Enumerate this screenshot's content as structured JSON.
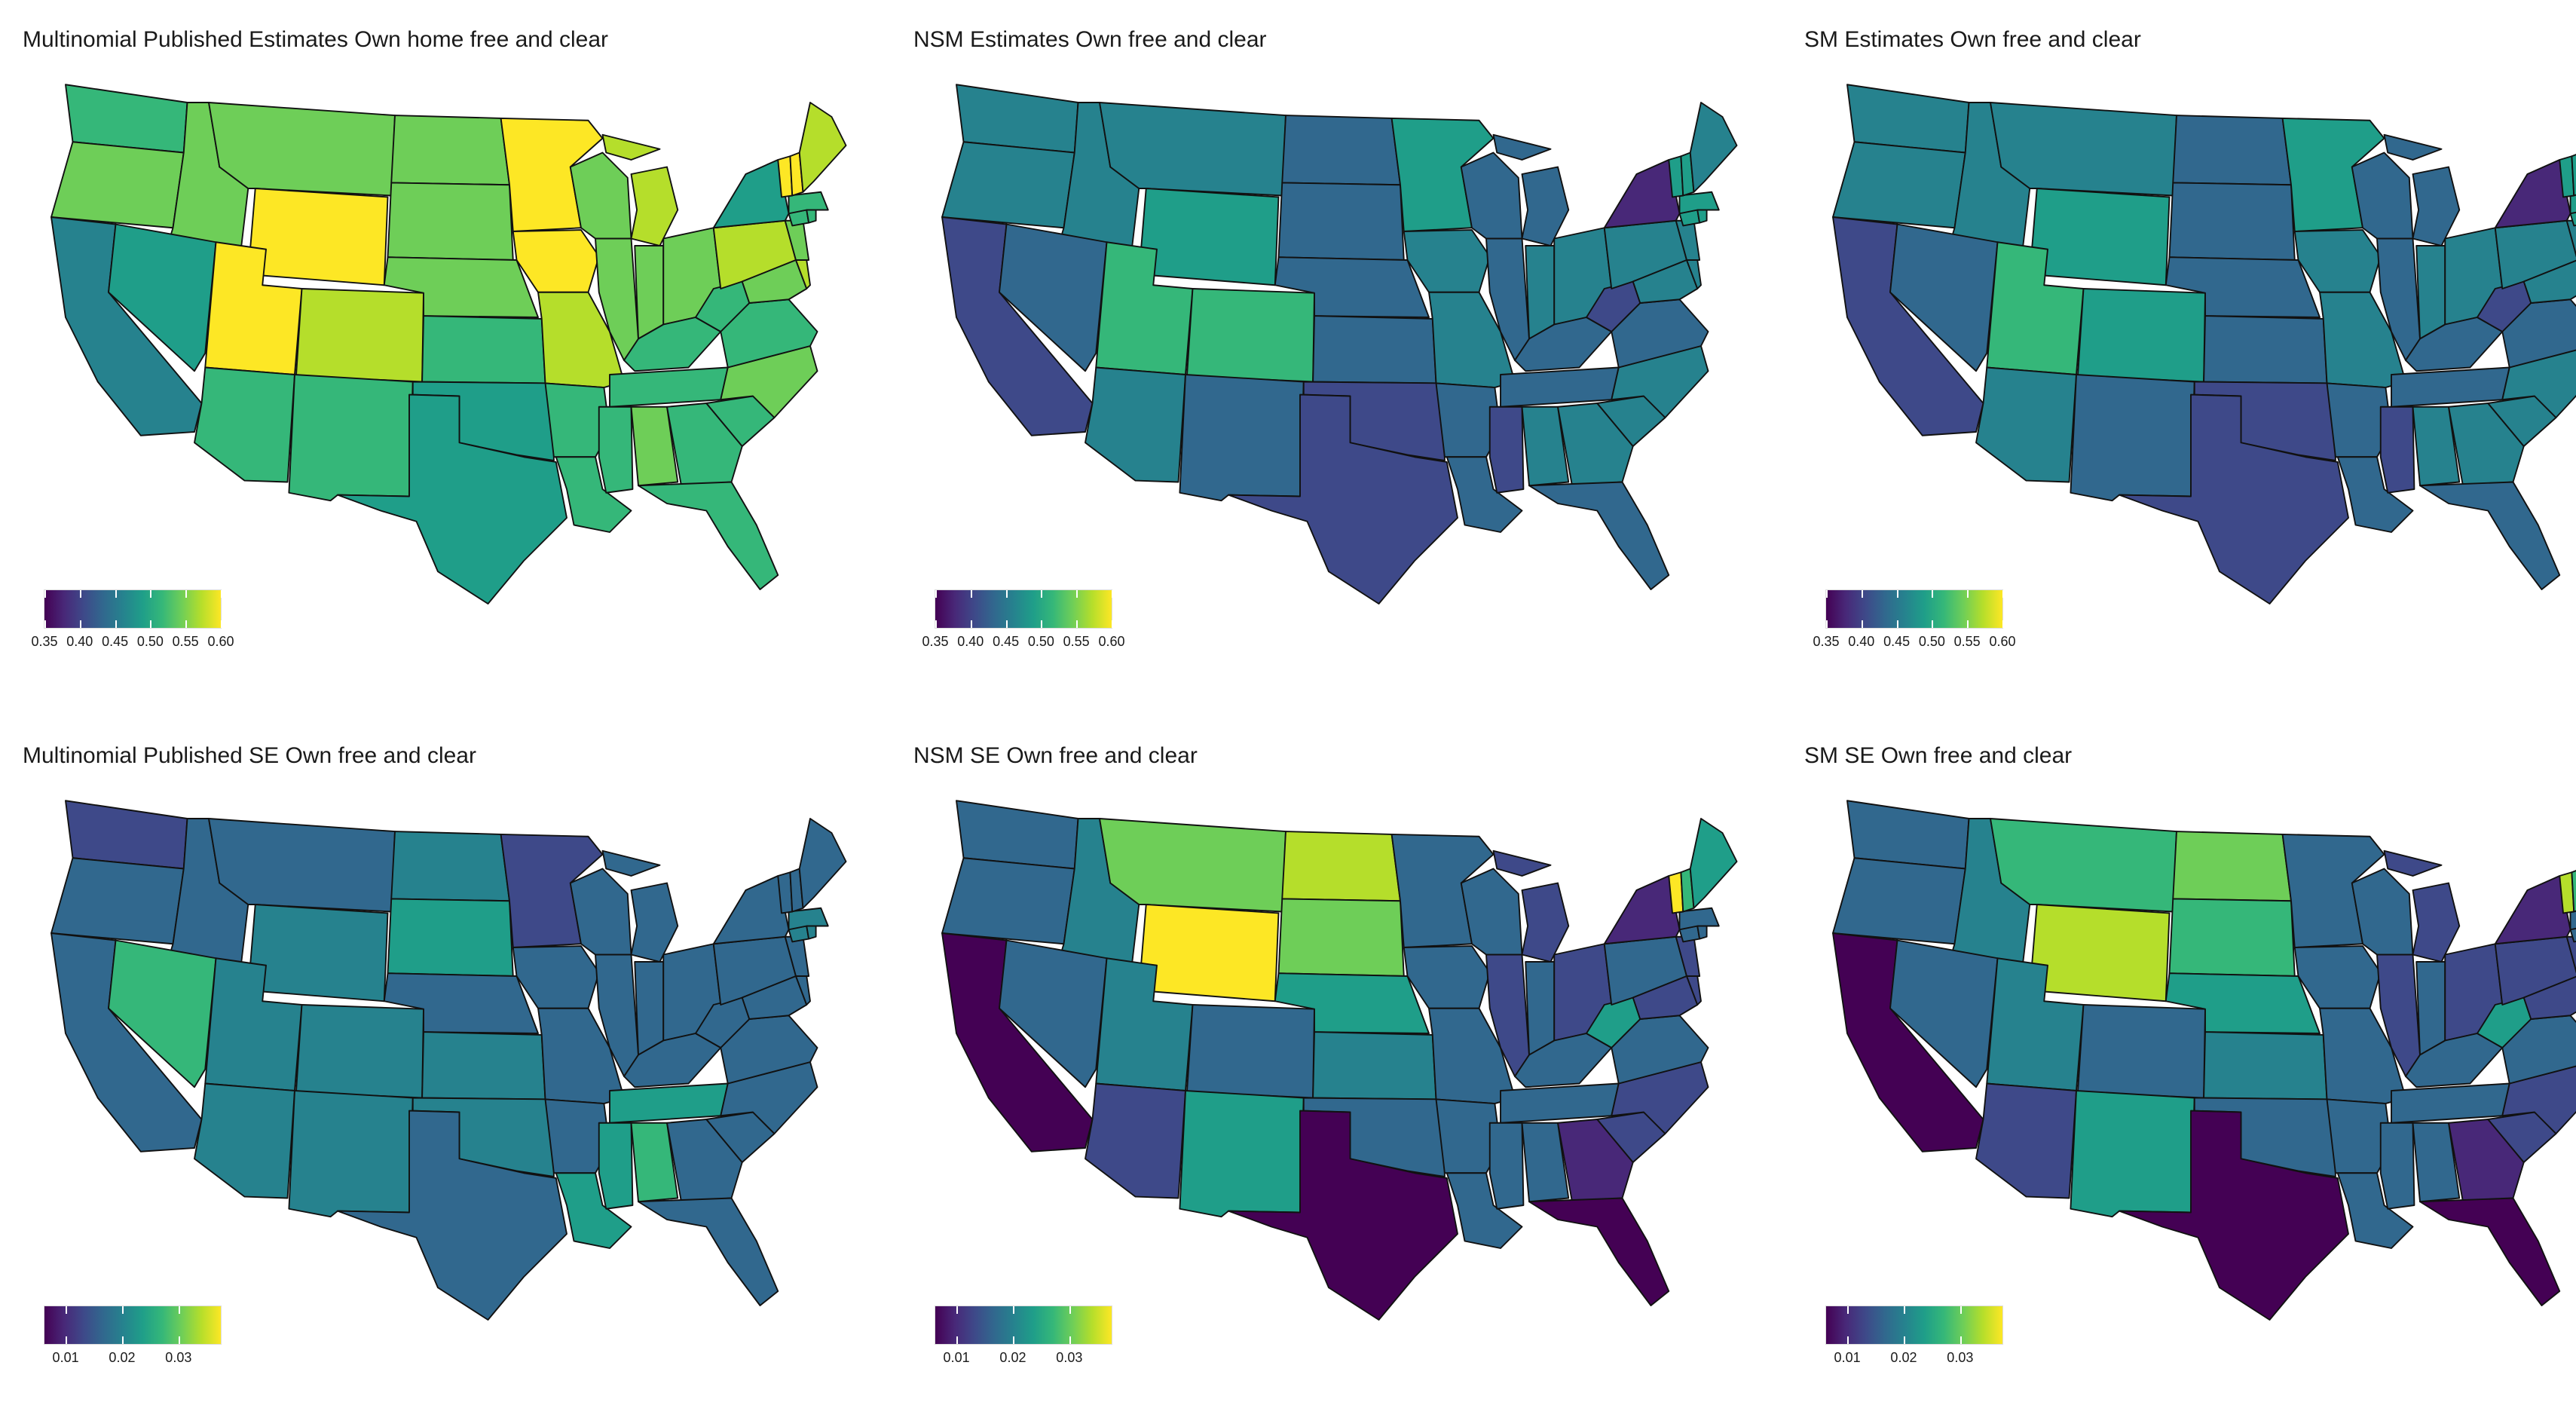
{
  "panels": [
    {
      "title": "Multinomial Published Estimates Own home free and clear",
      "scale": "est",
      "pattern": 0,
      "legend_ticks": [
        "0.35",
        "0.40",
        "0.45",
        "0.50",
        "0.55",
        "0.60"
      ]
    },
    {
      "title": "NSM Estimates Own free and clear",
      "scale": "est",
      "pattern": 1,
      "legend_ticks": [
        "0.35",
        "0.40",
        "0.45",
        "0.50",
        "0.55",
        "0.60"
      ]
    },
    {
      "title": "SM Estimates Own free and clear",
      "scale": "est",
      "pattern": 2,
      "legend_ticks": [
        "0.35",
        "0.40",
        "0.45",
        "0.50",
        "0.55",
        "0.60"
      ]
    },
    {
      "title": "Multinomial Published SE Own free and clear",
      "scale": "se",
      "pattern": 3,
      "legend_ticks": [
        "0.01",
        "0.02",
        "0.03"
      ]
    },
    {
      "title": "NSM SE Own free and clear",
      "scale": "se",
      "pattern": 4,
      "legend_ticks": [
        "0.01",
        "0.02",
        "0.03"
      ]
    },
    {
      "title": "SM SE Own free and clear",
      "scale": "se",
      "pattern": 5,
      "legend_ticks": [
        "0.01",
        "0.02",
        "0.03"
      ]
    }
  ],
  "colors": {
    "viridis": [
      "#440154",
      "#482878",
      "#3e4989",
      "#31688e",
      "#26828e",
      "#1f9e89",
      "#35b779",
      "#6ece58",
      "#b5de2b",
      "#fde725"
    ]
  }
}
